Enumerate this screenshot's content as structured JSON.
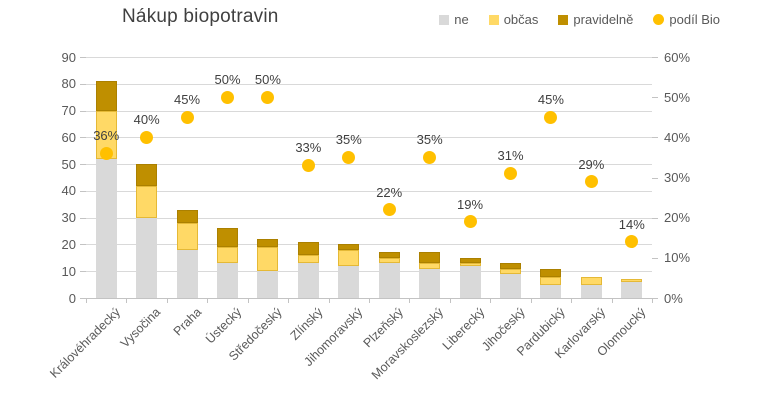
{
  "title": "Nákup biopotravin",
  "legend": [
    {
      "label": "ne",
      "marker": "square",
      "color": "#d9d9d9"
    },
    {
      "label": "občas",
      "marker": "square",
      "color": "#ffd966"
    },
    {
      "label": "pravidelně",
      "marker": "square",
      "color": "#bf8f00"
    },
    {
      "label": "podíl Bio",
      "marker": "circle",
      "color": "#ffc000"
    }
  ],
  "chart_data": {
    "type": "bar",
    "subtype": "stacked-bar-with-scatter-overlay",
    "title": "Nákup biopotravin",
    "categories": [
      "Královéhradecký",
      "Vysočina",
      "Praha",
      "Ústecký",
      "Středočeský",
      "Zlínský",
      "Jihomoravský",
      "Plzeňský",
      "Moravskoslezský",
      "Liberecký",
      "Jihočeský",
      "Pardubický",
      "Karlovarský",
      "Olomoucký"
    ],
    "series": [
      {
        "name": "ne",
        "kind": "stacked-bar",
        "axis": "left",
        "color": "#d9d9d9",
        "values": [
          52,
          30,
          18,
          13,
          10,
          13,
          12,
          13,
          11,
          12,
          9,
          5,
          5,
          6
        ]
      },
      {
        "name": "občas",
        "kind": "stacked-bar",
        "axis": "left",
        "color": "#ffd966",
        "values": [
          18,
          12,
          10,
          6,
          9,
          3,
          6,
          2,
          2,
          1,
          2,
          3,
          3,
          1
        ]
      },
      {
        "name": "pravidelně",
        "kind": "stacked-bar",
        "axis": "left",
        "color": "#bf8f00",
        "values": [
          11,
          8,
          5,
          7,
          3,
          5,
          2,
          2,
          4,
          2,
          2,
          3,
          0,
          0
        ]
      },
      {
        "name": "podíl Bio",
        "kind": "scatter",
        "axis": "right",
        "color": "#ffc000",
        "values": [
          36,
          40,
          45,
          50,
          50,
          33,
          35,
          22,
          35,
          19,
          31,
          45,
          29,
          14
        ],
        "labels": [
          "36%",
          "40%",
          "45%",
          "50%",
          "50%",
          "33%",
          "35%",
          "22%",
          "35%",
          "19%",
          "31%",
          "45%",
          "29%",
          "14%"
        ]
      }
    ],
    "left_axis": {
      "min": 0,
      "max": 90,
      "step": 10,
      "tick_labels": [
        "0",
        "10",
        "20",
        "30",
        "40",
        "50",
        "60",
        "70",
        "80",
        "90"
      ]
    },
    "right_axis": {
      "min": 0,
      "max": 60,
      "step": 10,
      "tick_labels": [
        "0%",
        "10%",
        "20%",
        "30%",
        "40%",
        "50%",
        "60%"
      ]
    },
    "grid": true,
    "legend_position": "top-right",
    "background": "#ffffff",
    "text_colors": {
      "title": "#404040",
      "axis": "#595959",
      "data_labels": "#404040",
      "gridline": "#d9d9d9"
    }
  }
}
